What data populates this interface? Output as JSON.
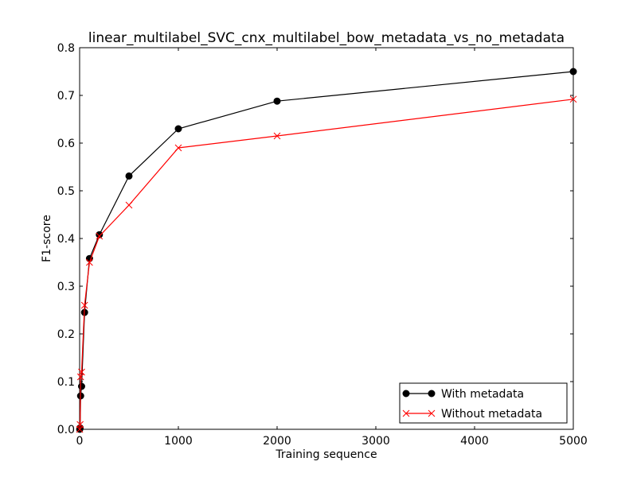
{
  "chart_data": {
    "type": "line",
    "title": "linear_multilabel_SVC_cnx_multilabel_bow_metadata_vs_no_metadata",
    "xlabel": "Training sequence",
    "ylabel": "F1-score",
    "xlim": [
      0,
      5000
    ],
    "ylim": [
      0.0,
      0.8
    ],
    "xticks": [
      0,
      1000,
      2000,
      3000,
      4000,
      5000
    ],
    "xtick_labels": [
      "0",
      "1000",
      "2000",
      "3000",
      "4000",
      "5000"
    ],
    "yticks": [
      0.0,
      0.1,
      0.2,
      0.3,
      0.4,
      0.5,
      0.6,
      0.7,
      0.8
    ],
    "ytick_labels": [
      "0.0",
      "0.1",
      "0.2",
      "0.3",
      "0.4",
      "0.5",
      "0.6",
      "0.7",
      "0.8"
    ],
    "grid": false,
    "legend_position": "bottom-right",
    "series": [
      {
        "name": "With metadata",
        "color": "#000000",
        "marker": "circle",
        "x": [
          1,
          5,
          10,
          20,
          50,
          100,
          200,
          500,
          1000,
          2000,
          5000
        ],
        "y": [
          0.0,
          0.003,
          0.07,
          0.09,
          0.245,
          0.358,
          0.408,
          0.531,
          0.63,
          0.688,
          0.75
        ]
      },
      {
        "name": "Without metadata",
        "color": "#ff0000",
        "marker": "x",
        "x": [
          1,
          5,
          10,
          20,
          50,
          100,
          200,
          500,
          1000,
          2000,
          5000
        ],
        "y": [
          0.0,
          0.01,
          0.11,
          0.12,
          0.26,
          0.35,
          0.405,
          0.47,
          0.59,
          0.615,
          0.692
        ]
      }
    ]
  }
}
